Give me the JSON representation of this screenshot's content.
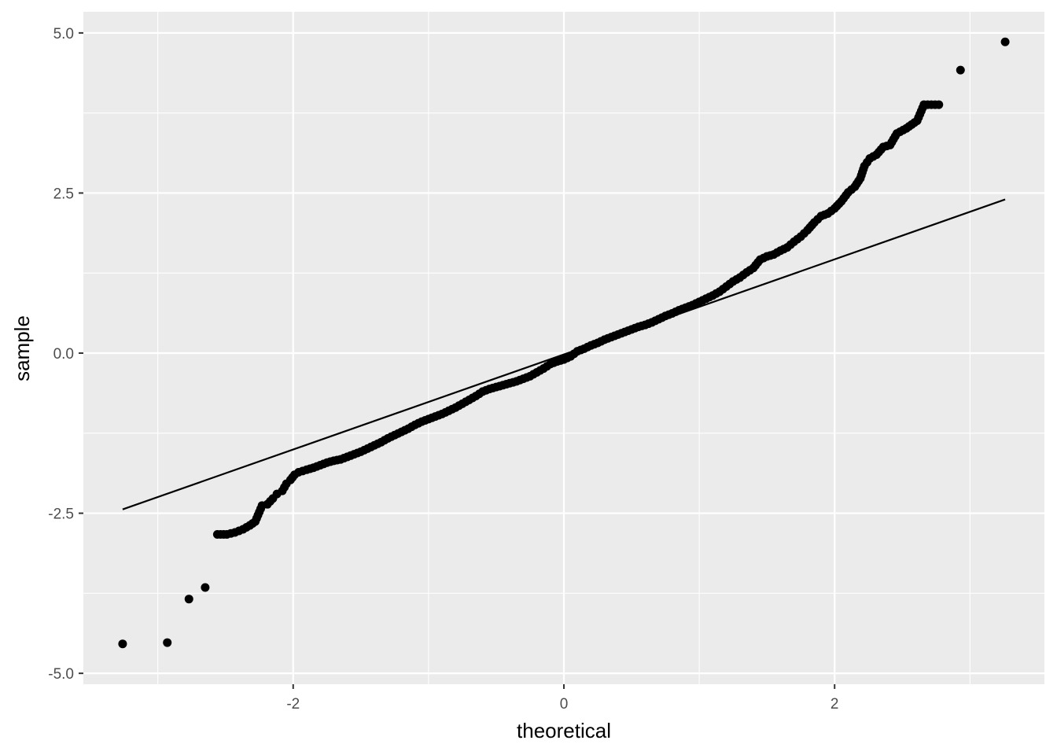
{
  "chart_data": {
    "type": "scatter",
    "title": "",
    "xlabel": "theoretical",
    "ylabel": "sample",
    "xlim": [
      -3.55,
      3.55
    ],
    "ylim": [
      -5.17,
      5.33
    ],
    "x_ticks": [
      -2,
      0,
      2
    ],
    "x_tick_labels": [
      "-2",
      "0",
      "2"
    ],
    "y_ticks": [
      -5,
      -2.5,
      0,
      2.5,
      5
    ],
    "y_tick_labels": [
      "-5.0",
      "-2.5",
      "0.0",
      "2.5",
      "5.0"
    ],
    "grid": true,
    "legend": "none",
    "colors": {
      "panel": "#ebebeb",
      "grid": "#ffffff",
      "points": "#000000",
      "line": "#000000",
      "tick_text": "#4d4d4d"
    },
    "series": [
      {
        "type": "scatter",
        "points": [
          [
            -3.26,
            -4.54
          ],
          [
            -2.93,
            -4.52
          ],
          [
            -2.77,
            -3.84
          ],
          [
            -2.65,
            -3.66
          ],
          [
            -2.56,
            -2.83
          ],
          [
            -2.49,
            -2.83
          ],
          [
            -2.43,
            -2.8
          ],
          [
            -2.37,
            -2.75
          ],
          [
            -2.32,
            -2.69
          ],
          [
            -2.28,
            -2.63
          ],
          [
            -2.23,
            -2.38
          ],
          [
            -2.19,
            -2.36
          ],
          [
            -2.15,
            -2.27
          ],
          [
            -2.12,
            -2.2
          ],
          [
            -2.08,
            -2.15
          ],
          [
            -2.05,
            -2.04
          ],
          [
            -2.02,
            -1.98
          ],
          [
            -1.99,
            -1.9
          ],
          [
            -1.96,
            -1.86
          ],
          [
            -1.93,
            -1.84
          ],
          [
            -1.9,
            -1.82
          ],
          [
            -1.85,
            -1.79
          ],
          [
            -1.8,
            -1.75
          ],
          [
            -1.75,
            -1.71
          ],
          [
            -1.7,
            -1.68
          ],
          [
            -1.65,
            -1.66
          ],
          [
            -1.6,
            -1.62
          ],
          [
            -1.55,
            -1.58
          ],
          [
            -1.5,
            -1.54
          ],
          [
            -1.45,
            -1.49
          ],
          [
            -1.4,
            -1.44
          ],
          [
            -1.35,
            -1.39
          ],
          [
            -1.3,
            -1.33
          ],
          [
            -1.25,
            -1.28
          ],
          [
            -1.2,
            -1.23
          ],
          [
            -1.15,
            -1.18
          ],
          [
            -1.1,
            -1.12
          ],
          [
            -1.05,
            -1.07
          ],
          [
            -1.0,
            -1.03
          ],
          [
            -0.95,
            -0.99
          ],
          [
            -0.9,
            -0.95
          ],
          [
            -0.85,
            -0.9
          ],
          [
            -0.8,
            -0.85
          ],
          [
            -0.75,
            -0.79
          ],
          [
            -0.7,
            -0.73
          ],
          [
            -0.65,
            -0.67
          ],
          [
            -0.6,
            -0.6
          ],
          [
            -0.55,
            -0.56
          ],
          [
            -0.5,
            -0.53
          ],
          [
            -0.45,
            -0.5
          ],
          [
            -0.4,
            -0.47
          ],
          [
            -0.35,
            -0.44
          ],
          [
            -0.3,
            -0.4
          ],
          [
            -0.25,
            -0.36
          ],
          [
            -0.2,
            -0.3
          ],
          [
            -0.15,
            -0.24
          ],
          [
            -0.1,
            -0.17
          ],
          [
            -0.05,
            -0.13
          ],
          [
            0.0,
            -0.1
          ],
          [
            0.05,
            -0.05
          ],
          [
            0.1,
            0.03
          ],
          [
            0.15,
            0.07
          ],
          [
            0.2,
            0.12
          ],
          [
            0.25,
            0.16
          ],
          [
            0.3,
            0.21
          ],
          [
            0.35,
            0.25
          ],
          [
            0.4,
            0.29
          ],
          [
            0.45,
            0.33
          ],
          [
            0.5,
            0.37
          ],
          [
            0.55,
            0.41
          ],
          [
            0.6,
            0.44
          ],
          [
            0.65,
            0.48
          ],
          [
            0.7,
            0.53
          ],
          [
            0.75,
            0.58
          ],
          [
            0.8,
            0.62
          ],
          [
            0.85,
            0.67
          ],
          [
            0.9,
            0.71
          ],
          [
            0.95,
            0.75
          ],
          [
            1.0,
            0.8
          ],
          [
            1.05,
            0.85
          ],
          [
            1.1,
            0.9
          ],
          [
            1.15,
            0.96
          ],
          [
            1.2,
            1.04
          ],
          [
            1.25,
            1.12
          ],
          [
            1.3,
            1.18
          ],
          [
            1.35,
            1.26
          ],
          [
            1.4,
            1.33
          ],
          [
            1.45,
            1.46
          ],
          [
            1.5,
            1.51
          ],
          [
            1.55,
            1.54
          ],
          [
            1.6,
            1.6
          ],
          [
            1.65,
            1.65
          ],
          [
            1.7,
            1.74
          ],
          [
            1.75,
            1.82
          ],
          [
            1.8,
            1.92
          ],
          [
            1.85,
            2.04
          ],
          [
            1.9,
            2.14
          ],
          [
            1.95,
            2.18
          ],
          [
            2.0,
            2.26
          ],
          [
            2.05,
            2.37
          ],
          [
            2.1,
            2.51
          ],
          [
            2.15,
            2.6
          ],
          [
            2.19,
            2.73
          ],
          [
            2.22,
            2.92
          ],
          [
            2.26,
            3.04
          ],
          [
            2.31,
            3.1
          ],
          [
            2.36,
            3.22
          ],
          [
            2.41,
            3.25
          ],
          [
            2.46,
            3.43
          ],
          [
            2.53,
            3.51
          ],
          [
            2.61,
            3.63
          ],
          [
            2.66,
            3.88
          ],
          [
            2.77,
            3.88
          ],
          [
            2.93,
            4.42
          ],
          [
            3.26,
            4.86
          ]
        ]
      },
      {
        "type": "line",
        "points": [
          [
            -3.26,
            -2.44
          ],
          [
            3.26,
            2.4
          ]
        ]
      }
    ]
  }
}
